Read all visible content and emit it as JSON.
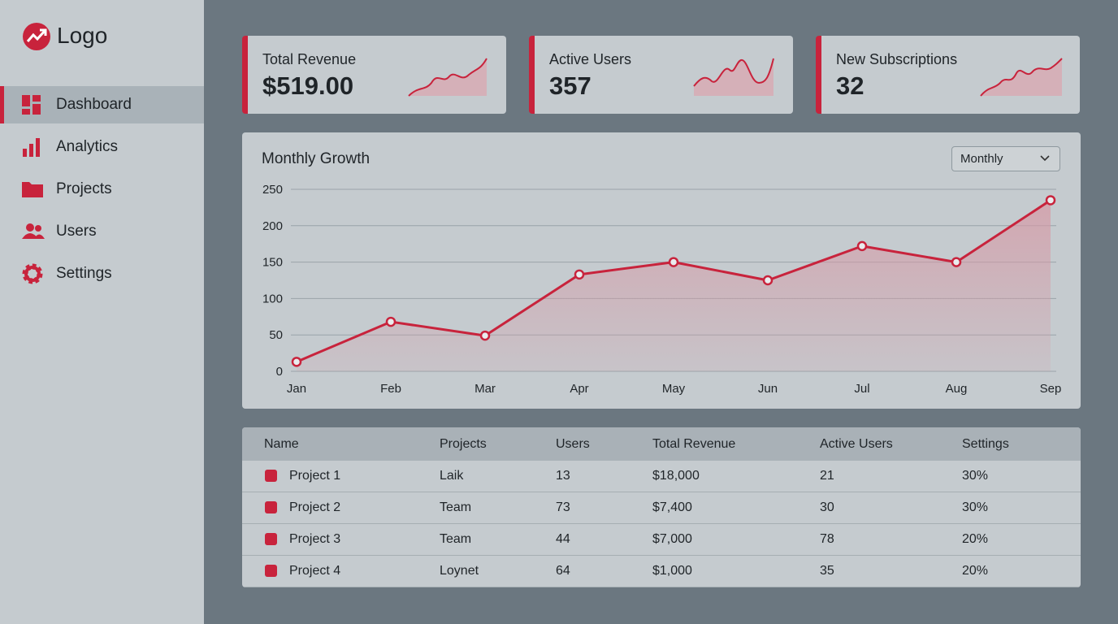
{
  "logo": "Logo",
  "nav": [
    "Dashboard",
    "Analytics",
    "Projects",
    "Users",
    "Settings"
  ],
  "cards": [
    {
      "title": "Total Revenue",
      "value": "$519.00"
    },
    {
      "title": "Active Users",
      "value": "357"
    },
    {
      "title": "New Subscriptions",
      "value": "32"
    }
  ],
  "dropdown": "Monthly",
  "chart_data": {
    "type": "line",
    "title": "Monthly Growth",
    "categories": [
      "Jan",
      "Feb",
      "Mar",
      "Apr",
      "May",
      "Jun",
      "Jul",
      "Aug",
      "Sep"
    ],
    "values": [
      13,
      68,
      49,
      133,
      150,
      125,
      172,
      150,
      235
    ],
    "color": "#c8233c",
    "ylim": [
      0,
      250
    ],
    "yticks": [
      0,
      50,
      100,
      150,
      200,
      250
    ],
    "grid": true
  },
  "table": {
    "columns": [
      "Name",
      "Projects",
      "Users",
      "Total Revenue",
      "Active Users",
      "Settings"
    ],
    "rows": [
      [
        "Project 1",
        "Laik",
        "13",
        "$18,000",
        "21",
        "30%"
      ],
      [
        "Project 2",
        "Team",
        "73",
        "$7,400",
        "30",
        "30%"
      ],
      [
        "Project 3",
        "Team",
        "44",
        "$7,000",
        "78",
        "20%"
      ],
      [
        "Project 4",
        "Loynet",
        "64",
        "$1,000",
        "35",
        "20%"
      ]
    ]
  }
}
